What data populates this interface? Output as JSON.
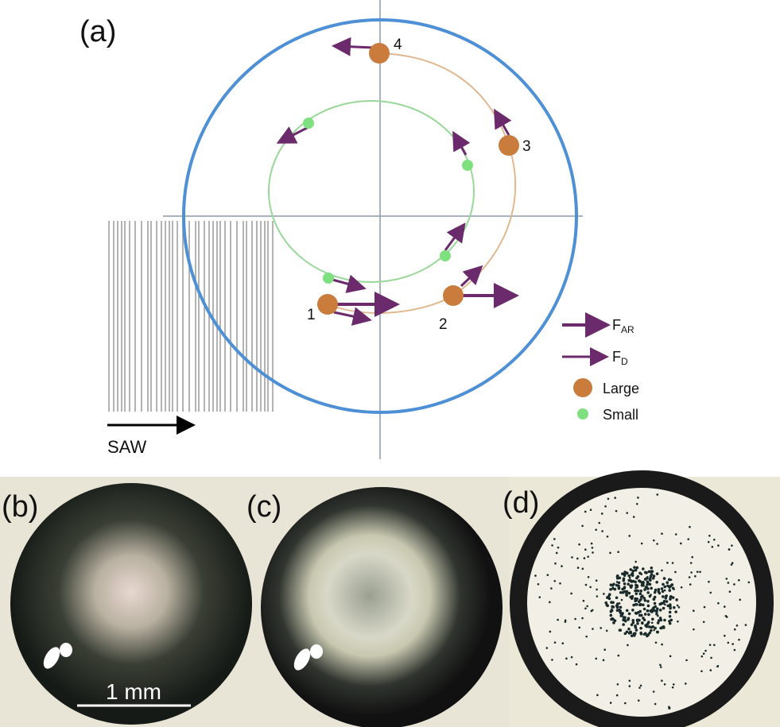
{
  "panels": {
    "a": {
      "label": "(a)",
      "points": [
        "1",
        "2",
        "3",
        "4"
      ],
      "wave_label": "SAW",
      "legend": [
        {
          "symbol": "F",
          "subscript": "AR"
        },
        {
          "symbol": "F",
          "subscript": "D"
        },
        {
          "text": "Large"
        },
        {
          "text": "Small"
        }
      ]
    },
    "b": {
      "label": "(b)",
      "scale_bar": "1 mm"
    },
    "c": {
      "label": "(c)"
    },
    "d": {
      "label": "(d)"
    }
  }
}
